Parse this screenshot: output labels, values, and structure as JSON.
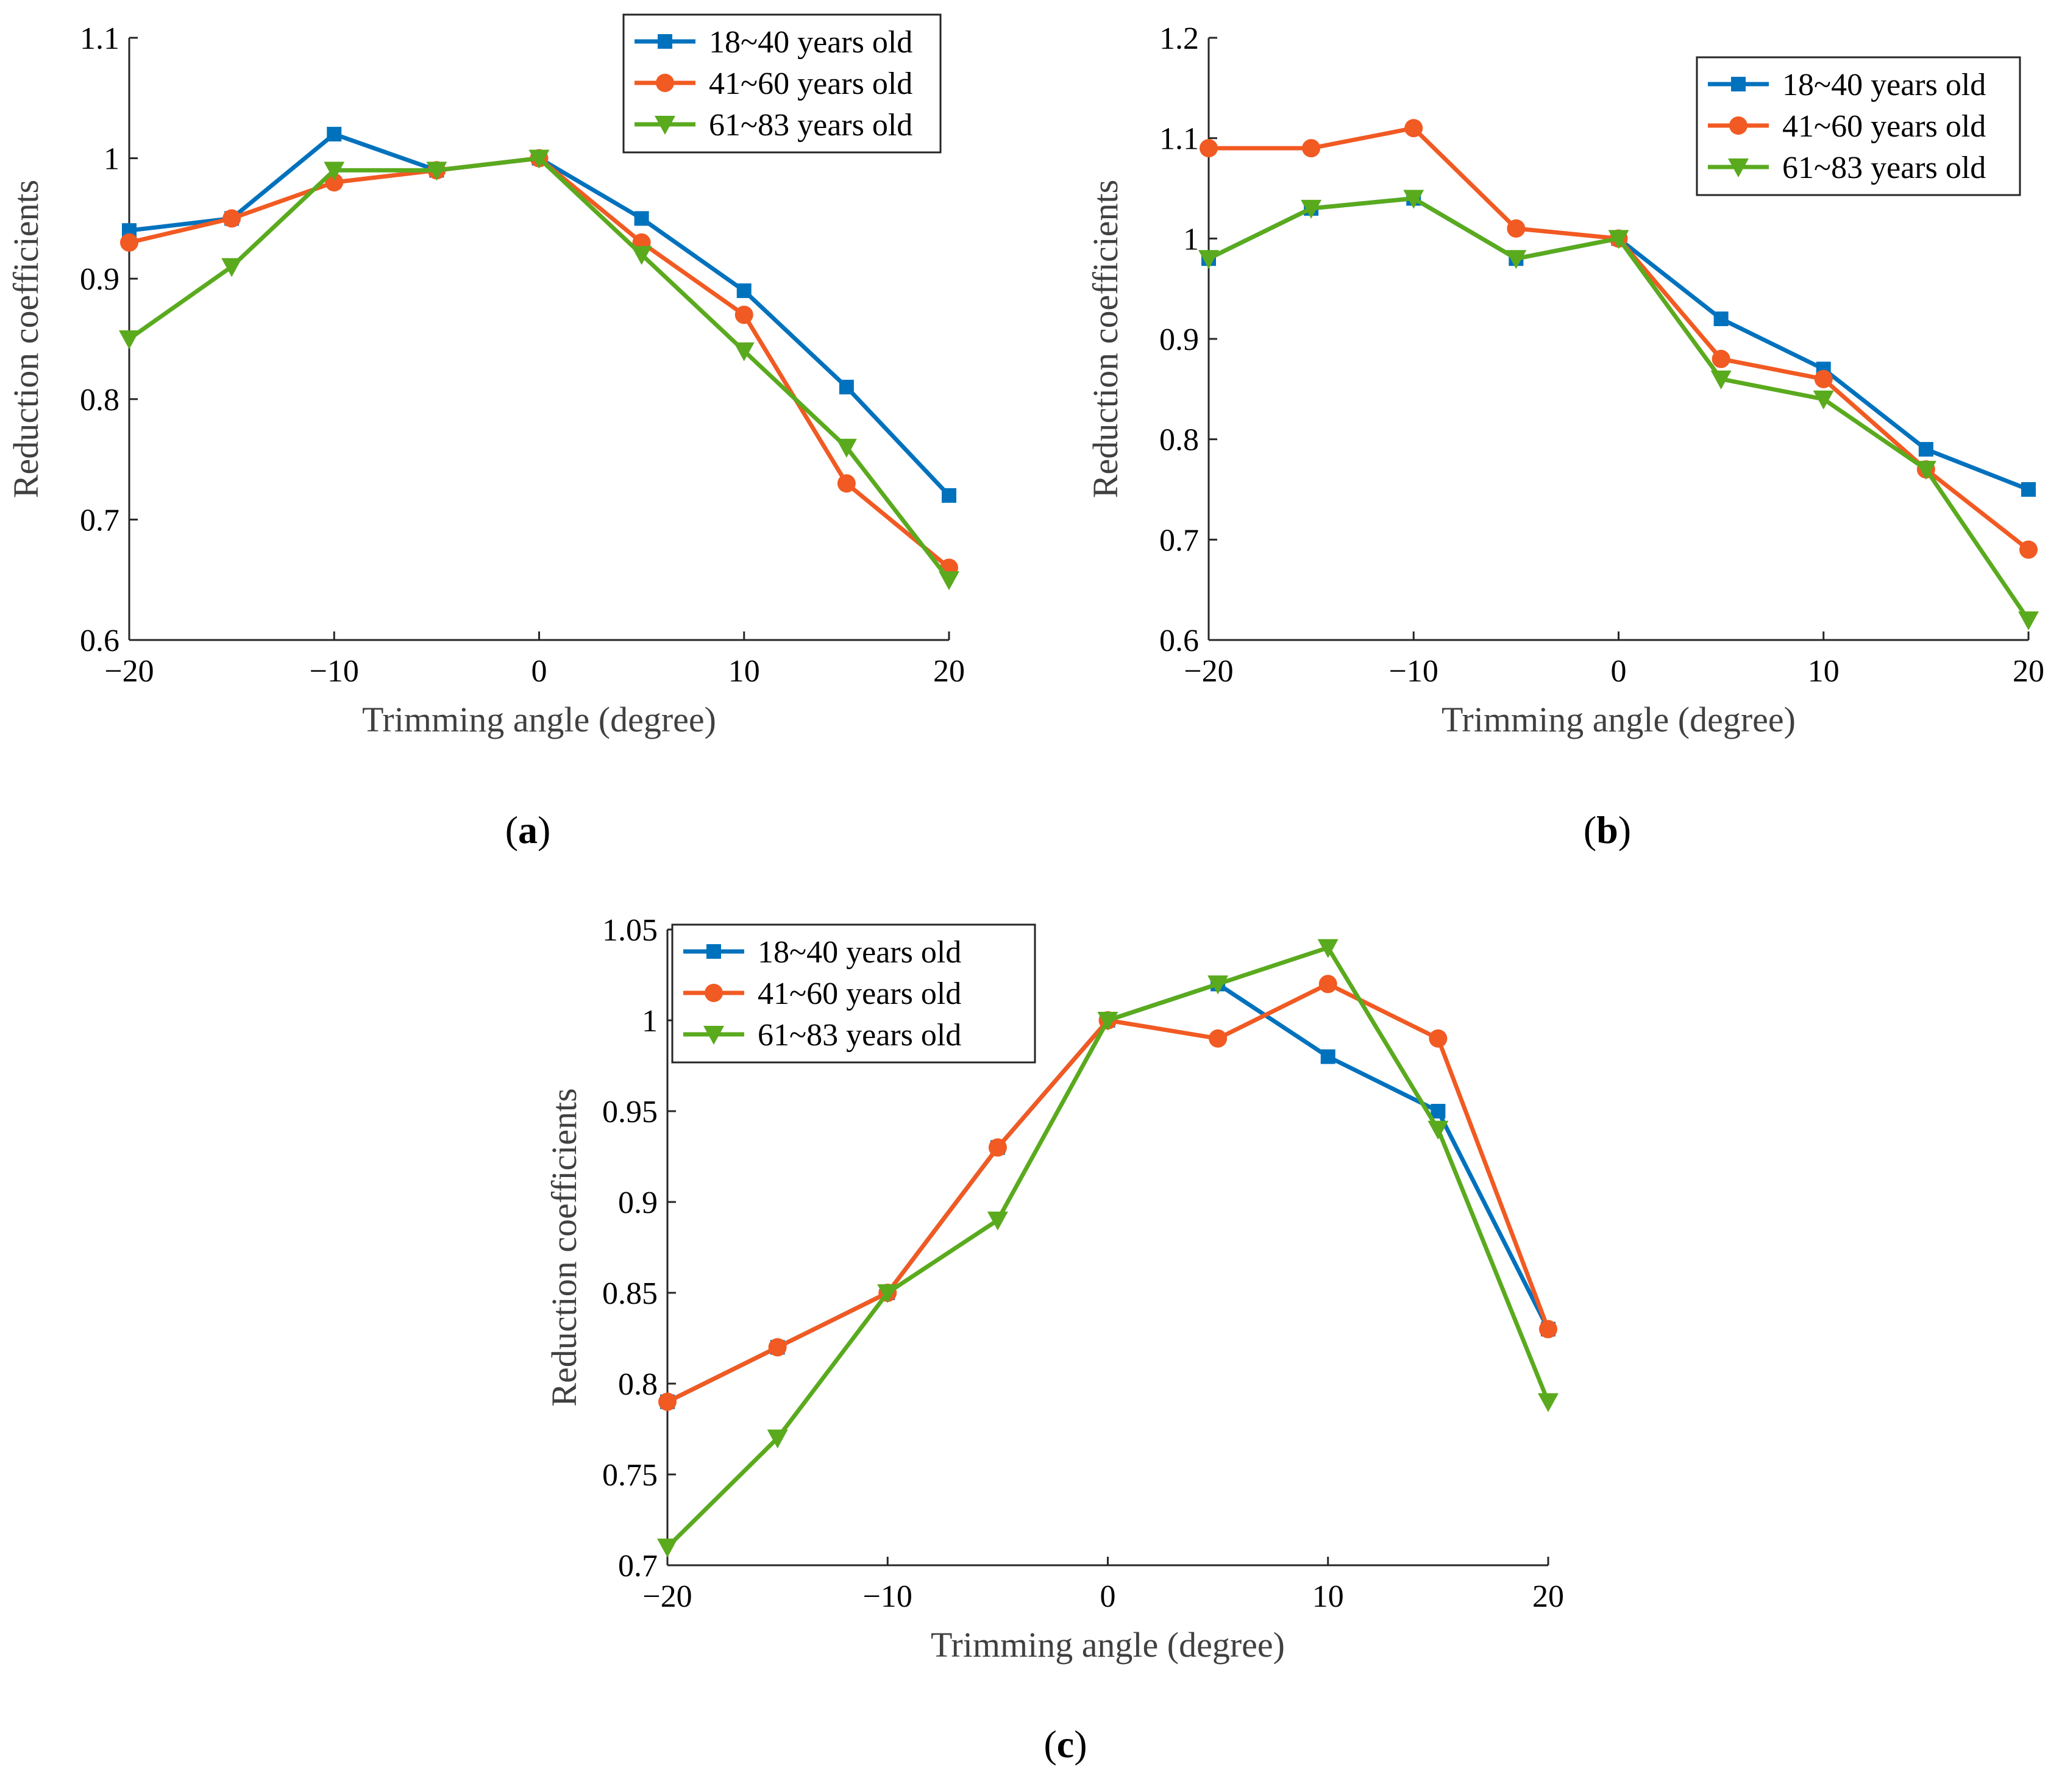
{
  "figure": {
    "captions": [
      {
        "open": "(",
        "letter": "a",
        "close": ")"
      },
      {
        "open": "(",
        "letter": "b",
        "close": ")"
      },
      {
        "open": "(",
        "letter": "c",
        "close": ")"
      }
    ]
  },
  "colors": {
    "series1": "#0072BD",
    "series2": "#F15A22",
    "series3": "#5AAA1E",
    "axis": "#262626",
    "label": "#404040"
  },
  "chart_data": [
    {
      "type": "line",
      "panel": "a",
      "xlabel": "Trimming angle (degree)",
      "ylabel": "Reduction coefficients",
      "x": [
        -20,
        -15,
        -10,
        -5,
        0,
        5,
        10,
        15,
        20
      ],
      "xlim": [
        -20,
        20
      ],
      "ylim": [
        0.6,
        1.1
      ],
      "xticks": [
        -20,
        -10,
        0,
        10,
        20
      ],
      "xtick_labels": [
        "−20",
        "−10",
        "0",
        "10",
        "20"
      ],
      "yticks": [
        0.6,
        0.7,
        0.8,
        0.9,
        1.0,
        1.1
      ],
      "ytick_labels": [
        "0.6",
        "0.7",
        "0.8",
        "0.9",
        "1",
        "1.1"
      ],
      "legend_position": "top-right",
      "series": [
        {
          "name": "18~40 years old",
          "marker": "square",
          "values": [
            0.94,
            0.95,
            1.02,
            0.99,
            1.0,
            0.95,
            0.89,
            0.81,
            0.72
          ]
        },
        {
          "name": "41~60 years old",
          "marker": "circle",
          "values": [
            0.93,
            0.95,
            0.98,
            0.99,
            1.0,
            0.93,
            0.87,
            0.73,
            0.66
          ]
        },
        {
          "name": "61~83 years old",
          "marker": "triangle-down",
          "values": [
            0.85,
            0.91,
            0.99,
            0.99,
            1.0,
            0.92,
            0.84,
            0.76,
            0.65
          ]
        }
      ]
    },
    {
      "type": "line",
      "panel": "b",
      "xlabel": "Trimming angle (degree)",
      "ylabel": "Reduction coefficients",
      "x": [
        -20,
        -15,
        -10,
        -5,
        0,
        5,
        10,
        15,
        20
      ],
      "xlim": [
        -20,
        20
      ],
      "ylim": [
        0.6,
        1.2
      ],
      "xticks": [
        -20,
        -10,
        0,
        10,
        20
      ],
      "xtick_labels": [
        "−20",
        "−10",
        "0",
        "10",
        "20"
      ],
      "yticks": [
        0.6,
        0.7,
        0.8,
        0.9,
        1.0,
        1.1,
        1.2
      ],
      "ytick_labels": [
        "0.6",
        "0.7",
        "0.8",
        "0.9",
        "1",
        "1.1",
        "1.2"
      ],
      "legend_position": "top-right",
      "series": [
        {
          "name": "18~40 years old",
          "marker": "square",
          "values": [
            0.98,
            1.03,
            1.04,
            0.98,
            1.0,
            0.92,
            0.87,
            0.79,
            0.75
          ]
        },
        {
          "name": "41~60 years old",
          "marker": "circle",
          "values": [
            1.09,
            1.09,
            1.11,
            1.01,
            1.0,
            0.88,
            0.86,
            0.77,
            0.69
          ]
        },
        {
          "name": "61~83 years old",
          "marker": "triangle-down",
          "values": [
            0.98,
            1.03,
            1.04,
            0.98,
            1.0,
            0.86,
            0.84,
            0.77,
            0.62
          ]
        }
      ]
    },
    {
      "type": "line",
      "panel": "c",
      "xlabel": "Trimming angle (degree)",
      "ylabel": "Reduction coefficients",
      "x": [
        -20,
        -15,
        -10,
        -5,
        0,
        5,
        10,
        15,
        20
      ],
      "xlim": [
        -20,
        20
      ],
      "ylim": [
        0.7,
        1.05
      ],
      "xticks": [
        -20,
        -10,
        0,
        10,
        20
      ],
      "xtick_labels": [
        "−20",
        "−10",
        "0",
        "10",
        "20"
      ],
      "yticks": [
        0.7,
        0.75,
        0.8,
        0.85,
        0.9,
        0.95,
        1.0,
        1.05
      ],
      "ytick_labels": [
        "0.7",
        "0.75",
        "0.8",
        "0.85",
        "0.9",
        "0.95",
        "1",
        "1.05"
      ],
      "legend_position": "top-left",
      "series": [
        {
          "name": "18~40 years old",
          "marker": "square",
          "values": [
            0.79,
            0.82,
            0.85,
            0.93,
            1.0,
            1.02,
            0.98,
            0.95,
            0.83
          ]
        },
        {
          "name": "41~60 years old",
          "marker": "circle",
          "values": [
            0.79,
            0.82,
            0.85,
            0.93,
            1.0,
            0.99,
            1.02,
            0.99,
            0.83
          ]
        },
        {
          "name": "61~83 years old",
          "marker": "triangle-down",
          "values": [
            0.71,
            0.77,
            0.85,
            0.89,
            1.0,
            1.02,
            1.04,
            0.94,
            0.79
          ]
        }
      ]
    }
  ]
}
